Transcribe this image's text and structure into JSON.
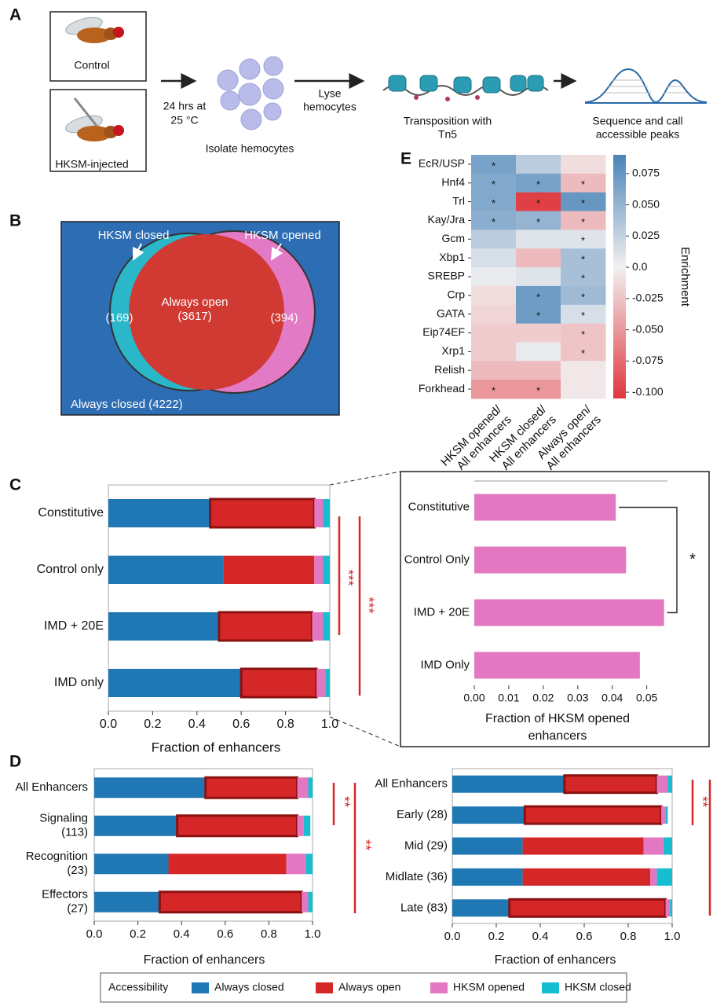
{
  "panels": [
    "A",
    "B",
    "C",
    "D",
    "E"
  ],
  "diagram": {
    "control": "Control",
    "injected": "HKSM-injected",
    "incubation": [
      "24 hrs at",
      "25 °C"
    ],
    "isolate": "Isolate hemocytes",
    "lyse": [
      "Lyse",
      "hemocytes"
    ],
    "transposition": [
      "Transposition with",
      "Tn5"
    ],
    "sequence": [
      "Sequence and call",
      "accessible peaks"
    ]
  },
  "venn": {
    "hksm_closed": "HKSM closed",
    "hksm_opened": "HKSM opened",
    "always_open": "Always open",
    "always_open_count": "(3617)",
    "closed_count": "(169)",
    "opened_count": "(394)",
    "always_closed": "Always closed (4222)"
  },
  "chart_data": [
    {
      "type": "stacked_bar",
      "categories": [
        "Constitutive",
        "Control only",
        "IMD + 20E",
        "IMD only"
      ],
      "series": [
        {
          "name": "Always closed",
          "color": "#1f77b4",
          "values": [
            0.46,
            0.52,
            0.5,
            0.6
          ]
        },
        {
          "name": "Always open",
          "color": "#d62728",
          "values": [
            0.47,
            0.41,
            0.42,
            0.34
          ]
        },
        {
          "name": "HKSM opened",
          "color": "#e377c2",
          "values": [
            0.04,
            0.04,
            0.05,
            0.04
          ]
        },
        {
          "name": "HKSM closed",
          "color": "#17becf",
          "values": [
            0.03,
            0.03,
            0.03,
            0.02
          ]
        }
      ],
      "outlined": [
        true,
        false,
        true,
        true
      ],
      "xlim": [
        0,
        1
      ],
      "xticks": [
        {
          "value": 0,
          "label": "0.0"
        },
        0.2,
        0.4,
        0.6,
        0.8,
        {
          "value": 1,
          "label": "1.0"
        }
      ],
      "xlabel": "Fraction of enhancers",
      "annotations": [
        "***",
        "***"
      ],
      "annotation_color": "#d62728",
      "legend_title": "Accessibility"
    },
    {
      "type": "bar",
      "categories": [
        "Constitutive",
        "Control Only",
        "IMD + 20E",
        "IMD Only"
      ],
      "values": [
        0.041,
        0.044,
        0.055,
        0.048
      ],
      "color": "#e377c2",
      "xlim": [
        0,
        0.056
      ],
      "xticks": [
        {
          "value": 0,
          "label": "0.00"
        },
        0.01,
        0.02,
        0.03,
        0.04,
        0.05
      ],
      "xlabel": [
        "Fraction of HKSM opened",
        "enhancers"
      ],
      "annotations": [
        "*"
      ]
    },
    {
      "type": "stacked_bar",
      "categories": [
        "All Enhancers",
        [
          "Signaling",
          "(113)"
        ],
        [
          "Recognition",
          "(23)"
        ],
        [
          "Effectors",
          "(27)"
        ]
      ],
      "series": [
        {
          "color": "#1f77b4",
          "values": [
            0.51,
            0.38,
            0.34,
            0.3
          ]
        },
        {
          "color": "#d62728",
          "values": [
            0.42,
            0.55,
            0.54,
            0.65
          ]
        },
        {
          "color": "#e377c2",
          "values": [
            0.05,
            0.03,
            0.09,
            0.03
          ]
        },
        {
          "color": "#17becf",
          "values": [
            0.02,
            0.03,
            0.03,
            0.02
          ]
        }
      ],
      "outlined": [
        true,
        true,
        false,
        true
      ],
      "xlim": [
        0,
        1
      ],
      "xticks": [
        {
          "value": 0,
          "label": "0.0"
        },
        0.2,
        0.4,
        0.6,
        0.8,
        {
          "value": 1,
          "label": "1.0"
        }
      ],
      "xlabel": "Fraction of enhancers",
      "annotations": [
        "**",
        "**"
      ],
      "annotation_color": "#d62728"
    },
    {
      "type": "stacked_bar",
      "categories": [
        "All Enhancers",
        "Early (28)",
        "Mid (29)",
        "Midlate (36)",
        "Late (83)"
      ],
      "series": [
        {
          "color": "#1f77b4",
          "values": [
            0.51,
            0.33,
            0.32,
            0.32,
            0.26
          ]
        },
        {
          "color": "#d62728",
          "values": [
            0.42,
            0.62,
            0.55,
            0.58,
            0.71
          ]
        },
        {
          "color": "#e377c2",
          "values": [
            0.05,
            0.02,
            0.09,
            0.03,
            0.02
          ]
        },
        {
          "color": "#17becf",
          "values": [
            0.02,
            0.01,
            0.04,
            0.07,
            0.01
          ]
        }
      ],
      "outlined": [
        true,
        true,
        false,
        false,
        true
      ],
      "xlim": [
        0,
        1
      ],
      "xticks": [
        {
          "value": 0,
          "label": "0.0"
        },
        0.2,
        0.4,
        0.6,
        0.8,
        {
          "value": 1,
          "label": "1.0"
        }
      ],
      "xlabel": "Fraction of enhancers",
      "annotations": [
        "**"
      ],
      "annotation_color": "#d62728"
    },
    {
      "type": "heatmap",
      "rows": [
        "EcR/USP",
        "Hnf4",
        "Trl",
        "Kay/Jra",
        "Gcm",
        "Xbp1",
        "SREBP",
        "Crp",
        "GATA",
        "Eip74EF",
        "Xrp1",
        "Relish",
        "Forkhead"
      ],
      "columns": [
        [
          "HKSM opened/",
          "All enhancers"
        ],
        [
          "HKSM closed/",
          "All enhancers"
        ],
        [
          "Always open/",
          "All enhancers"
        ]
      ],
      "values": [
        [
          0.065,
          0.03,
          -0.01
        ],
        [
          0.06,
          0.065,
          -0.03
        ],
        [
          0.06,
          -0.1,
          0.075
        ],
        [
          0.055,
          0.05,
          -0.03
        ],
        [
          0.03,
          0.01,
          0.01
        ],
        [
          0.015,
          -0.03,
          0.04
        ],
        [
          0.005,
          0.01,
          0.04
        ],
        [
          -0.01,
          0.07,
          0.045
        ],
        [
          -0.015,
          0.07,
          0.015
        ],
        [
          -0.02,
          -0.02,
          -0.025
        ],
        [
          -0.02,
          0.005,
          -0.025
        ],
        [
          -0.03,
          -0.03,
          -0.005
        ],
        [
          -0.05,
          -0.05,
          -0.005
        ]
      ],
      "stars": [
        [
          "*",
          null,
          null
        ],
        [
          "*",
          "*",
          "*"
        ],
        [
          "*",
          "*",
          "*"
        ],
        [
          "*",
          "*",
          "*"
        ],
        [
          null,
          null,
          "*"
        ],
        [
          null,
          null,
          "*"
        ],
        [
          null,
          null,
          "*"
        ],
        [
          null,
          "*",
          "*"
        ],
        [
          null,
          "*",
          "*"
        ],
        [
          null,
          null,
          "*"
        ],
        [
          null,
          null,
          "*"
        ],
        [
          null,
          null,
          null
        ],
        [
          "*",
          "*",
          null
        ]
      ],
      "zlim": [
        -0.105,
        0.09
      ],
      "zticks": [
        0.075,
        {
          "value": 0.05,
          "label": "0.050"
        },
        0.025,
        {
          "value": 0,
          "label": "0.0"
        },
        -0.025,
        {
          "value": -0.05,
          "label": "-0.050"
        },
        -0.075,
        {
          "value": -0.1,
          "label": "-0.100"
        }
      ],
      "colors": [
        "#e0363e",
        "#f2f0f0",
        "#4a84b9"
      ],
      "colorbar_label": "Enrichment"
    }
  ]
}
